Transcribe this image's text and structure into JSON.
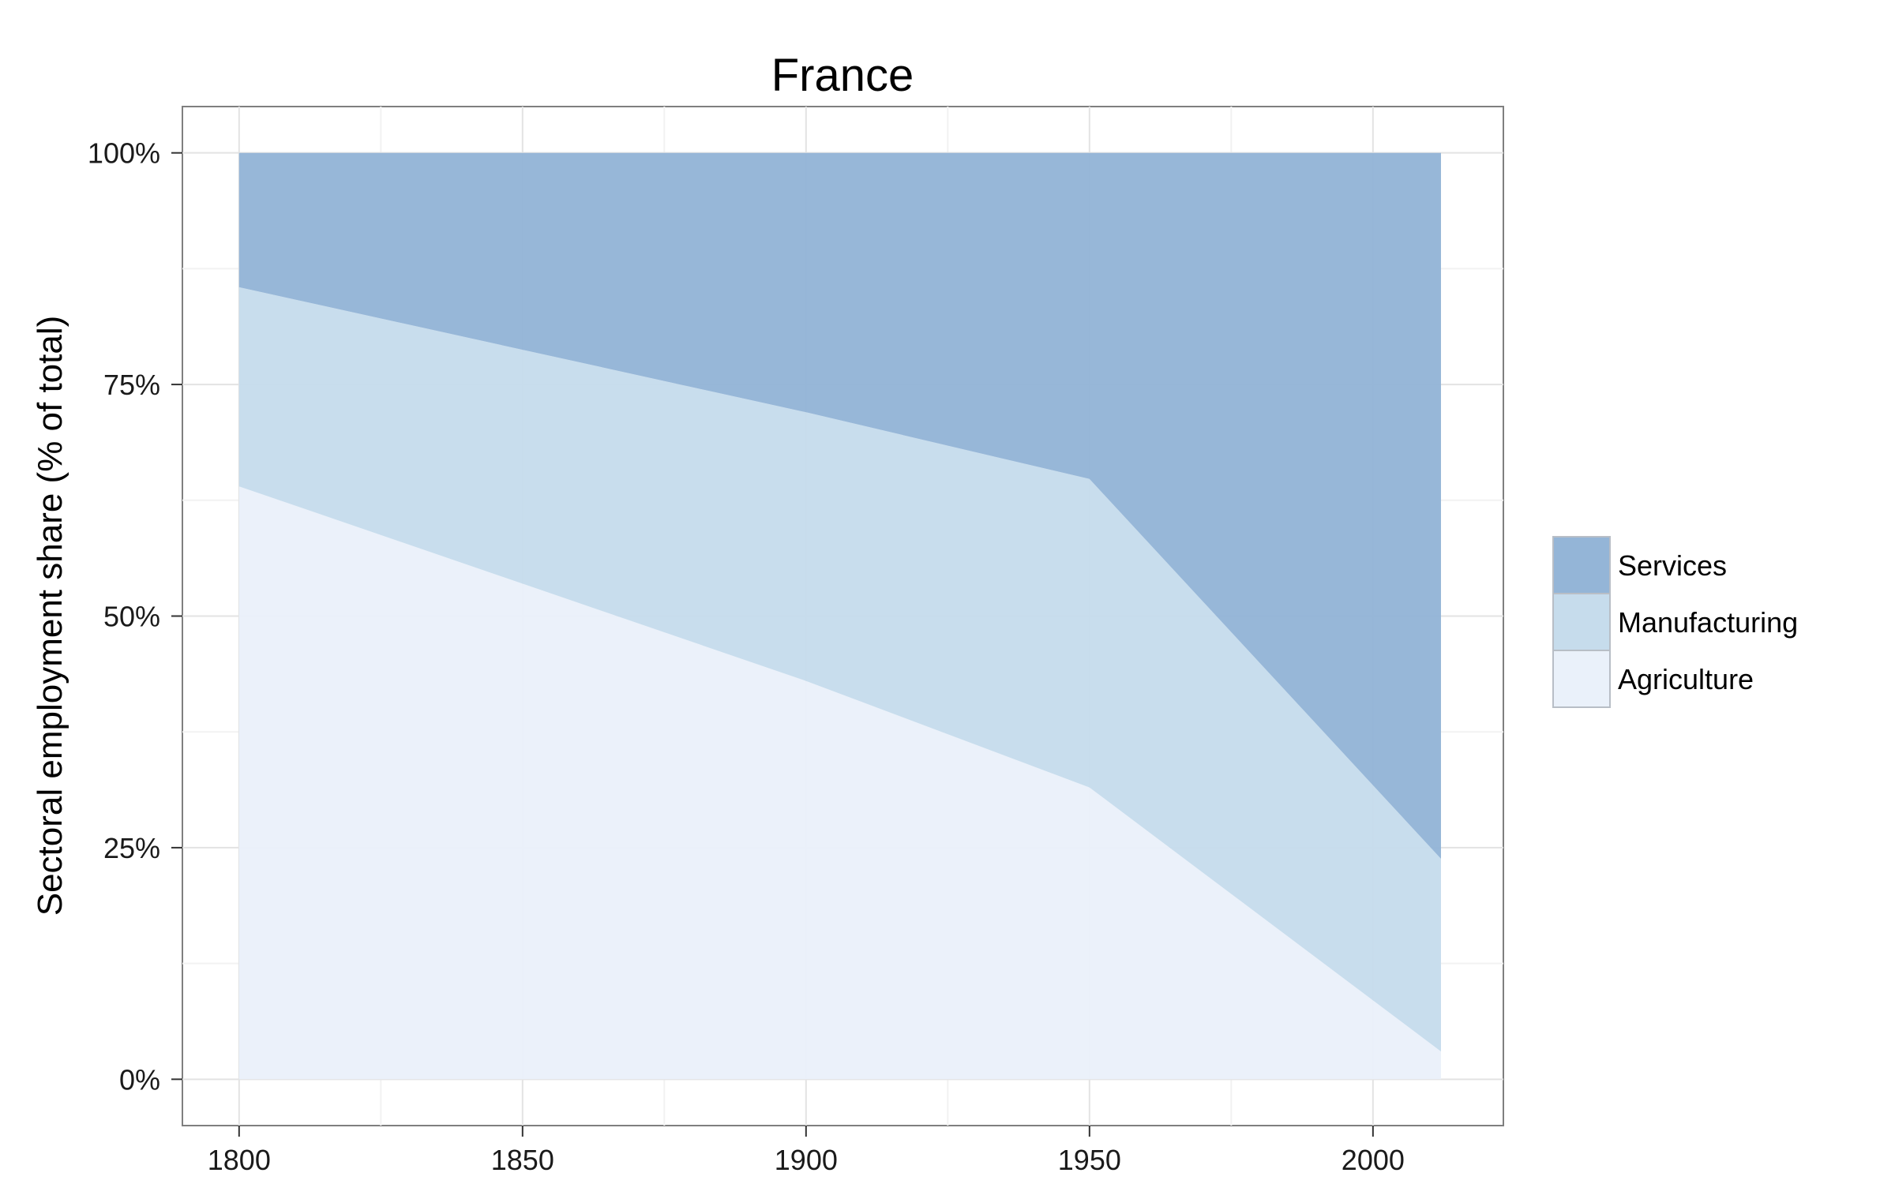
{
  "chart_data": {
    "type": "area",
    "stacked": true,
    "title": "France",
    "xlabel": "",
    "ylabel": "Sectoral employment share (% of total)",
    "x": [
      1800,
      1900,
      1950,
      2012
    ],
    "series": [
      {
        "name": "Agriculture",
        "values": [
          64,
          43,
          31.5,
          3
        ],
        "color": "#eaf1fa"
      },
      {
        "name": "Manufacturing",
        "values": [
          21.5,
          29,
          33.3,
          20.8
        ],
        "color": "#c6dcec"
      },
      {
        "name": "Services",
        "values": [
          14.5,
          28,
          35.2,
          76.2
        ],
        "color": "#94b5d7"
      }
    ],
    "xlim": [
      1790,
      2023
    ],
    "ylim": [
      -5,
      105
    ],
    "x_ticks": [
      1800,
      1850,
      1900,
      1950,
      2000
    ],
    "x_tick_labels": [
      "1800",
      "1850",
      "1900",
      "1950",
      "2000"
    ],
    "y_ticks": [
      0,
      25,
      50,
      75,
      100
    ],
    "y_tick_labels": [
      "0%",
      "25%",
      "50%",
      "75%",
      "100%"
    ],
    "legend_order": [
      "Services",
      "Manufacturing",
      "Agriculture"
    ],
    "legend_position": "right",
    "grid": true
  }
}
